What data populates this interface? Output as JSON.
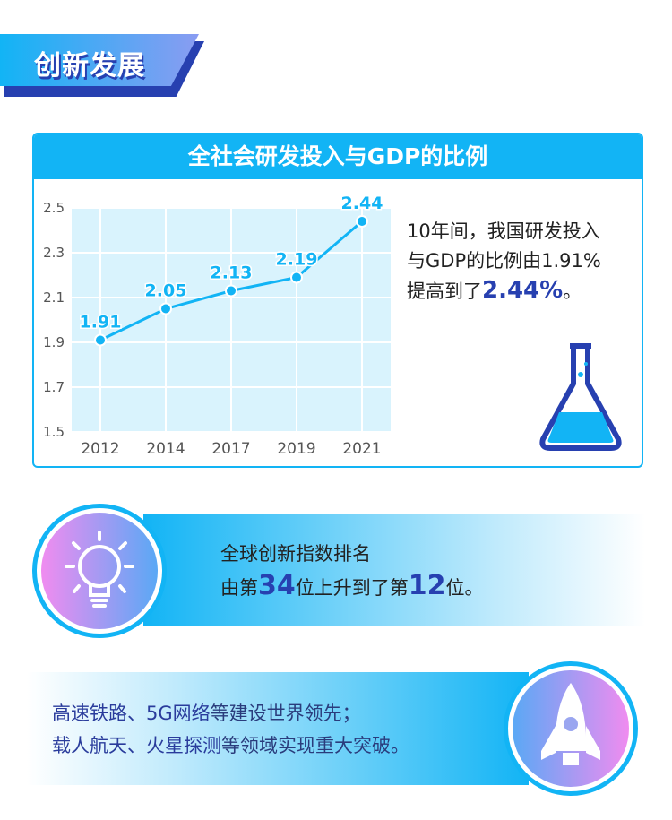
{
  "section_title": "创新发展",
  "card": {
    "title": "全社会研发投入与GDP的比例",
    "desc_line1": "10年间，我国研发投入",
    "desc_line2": "与GDP的比例由1.91%",
    "desc_pre": "提高到了",
    "desc_value": "2.44%",
    "desc_post": "。"
  },
  "chart_data": {
    "type": "line",
    "title": "全社会研发投入与GDP的比例",
    "categories": [
      "2012",
      "2014",
      "2017",
      "2019",
      "2021"
    ],
    "values": [
      1.91,
      2.05,
      2.13,
      2.19,
      2.44
    ],
    "data_labels": [
      "1.91",
      "2.05",
      "2.13",
      "2.19",
      "2.44"
    ],
    "yticks": [
      "1.5",
      "1.7",
      "1.9",
      "2.1",
      "2.3",
      "2.5"
    ],
    "ylim": [
      1.5,
      2.5
    ],
    "grid": true,
    "colors": {
      "line": "#12b4f5",
      "plot_bg": "#d9f3fd",
      "label": "#12b4f5"
    }
  },
  "innovation": {
    "line1": "全球创新指数排名",
    "pre": "由第",
    "from": "34",
    "mid": "位上升到了第",
    "to": "12",
    "post": "位。",
    "icon": "lightbulb-icon"
  },
  "achievements": {
    "l1_hl": "高速铁路、5G网络",
    "l1_rest": "等建设世界领先；",
    "l2_hl": "载人航天、火星探测",
    "l2_rest": "等领域实现重大突破。",
    "icon": "rocket-icon"
  }
}
